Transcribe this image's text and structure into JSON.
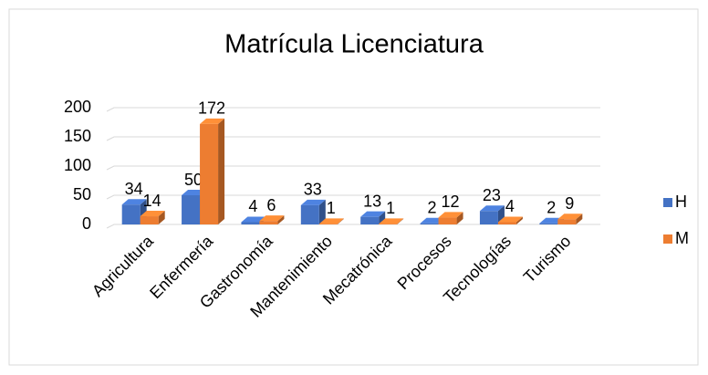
{
  "chart_data": {
    "type": "bar3d",
    "title": "Matrícula Licenciatura",
    "categories": [
      "Agricultura",
      "Enfermería",
      "Gastronomía",
      "Mantenimiento",
      "Mecatrónica",
      "Procesos",
      "Tecnologías",
      "Turismo"
    ],
    "series": [
      {
        "name": "H",
        "color": "#4472c4",
        "values": [
          34,
          50,
          4,
          33,
          13,
          2,
          23,
          2
        ]
      },
      {
        "name": "M",
        "color": "#ed7d31",
        "values": [
          14,
          172,
          6,
          1,
          1,
          12,
          4,
          9
        ]
      }
    ],
    "ylim": [
      0,
      200
    ],
    "yticks": [
      0,
      50,
      100,
      150,
      200
    ],
    "grid": true,
    "legend": "right"
  }
}
